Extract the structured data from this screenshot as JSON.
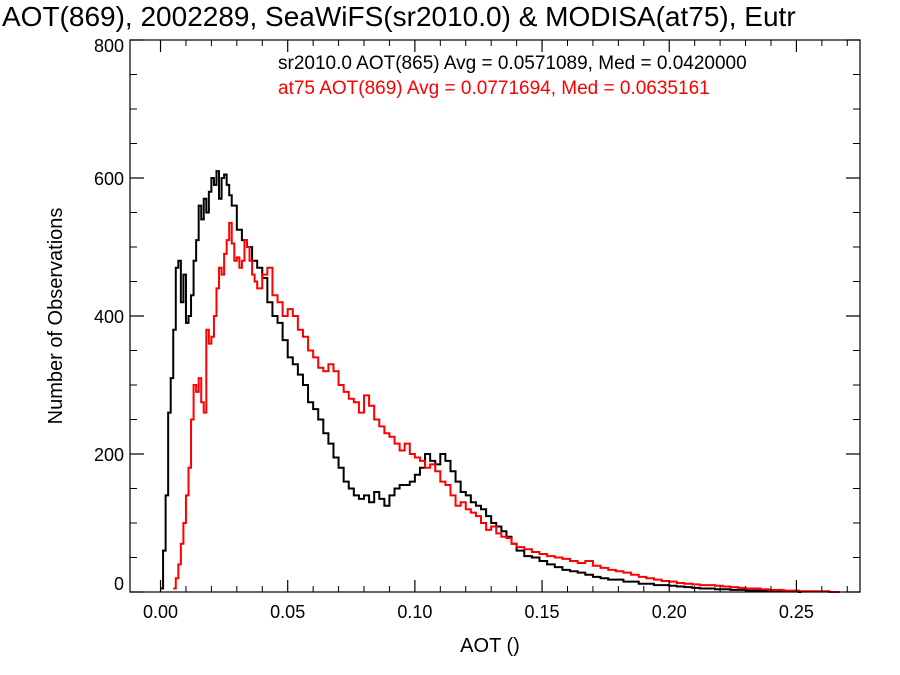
{
  "chart_data": {
    "type": "line",
    "title": "AOT(869), 2002289, SeaWiFS(sr2010.0) & MODISA(at75), Eutr",
    "xlabel": "AOT ()",
    "ylabel": "Number of Observations",
    "xlim": [
      -0.012,
      0.275
    ],
    "ylim": [
      0,
      800
    ],
    "x_ticks": [
      0.0,
      0.05,
      0.1,
      0.15,
      0.2,
      0.25
    ],
    "x_tick_labels": [
      "0.00",
      "0.05",
      "0.10",
      "0.15",
      "0.20",
      "0.25"
    ],
    "y_ticks": [
      0,
      200,
      400,
      600,
      800
    ],
    "y_tick_labels": [
      "0",
      "200",
      "400",
      "600",
      "800"
    ],
    "grid": false,
    "histogram_step": true,
    "bin_width": 0.001,
    "series": [
      {
        "name": "sr2010.0 AOT(865) Avg = 0.0571089, Med = 0.0420000",
        "color": "#000000",
        "x": [
          0.0,
          0.001,
          0.002,
          0.003,
          0.004,
          0.005,
          0.006,
          0.007,
          0.008,
          0.009,
          0.01,
          0.011,
          0.012,
          0.013,
          0.014,
          0.015,
          0.016,
          0.017,
          0.018,
          0.019,
          0.02,
          0.021,
          0.022,
          0.023,
          0.024,
          0.025,
          0.026,
          0.027,
          0.028,
          0.03,
          0.032,
          0.034,
          0.036,
          0.038,
          0.04,
          0.042,
          0.044,
          0.046,
          0.048,
          0.05,
          0.052,
          0.054,
          0.056,
          0.058,
          0.06,
          0.062,
          0.064,
          0.066,
          0.068,
          0.07,
          0.072,
          0.074,
          0.076,
          0.078,
          0.08,
          0.082,
          0.084,
          0.086,
          0.088,
          0.09,
          0.092,
          0.094,
          0.096,
          0.098,
          0.1,
          0.102,
          0.104,
          0.106,
          0.108,
          0.11,
          0.112,
          0.114,
          0.116,
          0.118,
          0.12,
          0.122,
          0.124,
          0.126,
          0.128,
          0.13,
          0.132,
          0.134,
          0.136,
          0.138,
          0.14,
          0.143,
          0.146,
          0.149,
          0.152,
          0.155,
          0.158,
          0.161,
          0.164,
          0.167,
          0.17,
          0.173,
          0.176,
          0.179,
          0.182,
          0.185,
          0.188,
          0.191,
          0.194,
          0.197,
          0.2,
          0.203,
          0.206,
          0.209,
          0.212,
          0.215,
          0.218,
          0.221,
          0.224,
          0.227,
          0.23,
          0.233,
          0.236,
          0.239,
          0.242,
          0.245,
          0.248,
          0.251
        ],
        "values": [
          5,
          60,
          140,
          260,
          310,
          380,
          470,
          480,
          420,
          460,
          390,
          400,
          430,
          480,
          510,
          560,
          540,
          570,
          550,
          580,
          600,
          590,
          610,
          570,
          600,
          605,
          590,
          575,
          560,
          525,
          510,
          500,
          480,
          470,
          455,
          420,
          400,
          390,
          365,
          340,
          330,
          315,
          300,
          275,
          265,
          250,
          230,
          215,
          195,
          180,
          160,
          150,
          140,
          135,
          140,
          130,
          145,
          135,
          125,
          140,
          150,
          155,
          155,
          160,
          170,
          180,
          200,
          190,
          185,
          200,
          190,
          175,
          160,
          145,
          140,
          130,
          125,
          120,
          110,
          100,
          95,
          88,
          80,
          70,
          60,
          52,
          50,
          45,
          40,
          36,
          32,
          30,
          28,
          25,
          22,
          20,
          18,
          18,
          15,
          15,
          12,
          12,
          10,
          10,
          9,
          8,
          7,
          6,
          5,
          5,
          4,
          4,
          3,
          3,
          2,
          2,
          2,
          1,
          1,
          1,
          1,
          0
        ]
      },
      {
        "name": "at75 AOT(869) Avg = 0.0771694, Med = 0.0635161",
        "color": "#ff0000",
        "x": [
          0.005,
          0.006,
          0.007,
          0.008,
          0.009,
          0.01,
          0.011,
          0.012,
          0.013,
          0.014,
          0.015,
          0.016,
          0.017,
          0.018,
          0.019,
          0.02,
          0.021,
          0.022,
          0.023,
          0.024,
          0.025,
          0.026,
          0.027,
          0.028,
          0.029,
          0.03,
          0.031,
          0.032,
          0.033,
          0.034,
          0.035,
          0.036,
          0.037,
          0.038,
          0.04,
          0.042,
          0.044,
          0.046,
          0.048,
          0.05,
          0.052,
          0.054,
          0.056,
          0.058,
          0.06,
          0.062,
          0.064,
          0.066,
          0.068,
          0.07,
          0.072,
          0.074,
          0.076,
          0.078,
          0.08,
          0.082,
          0.084,
          0.086,
          0.088,
          0.09,
          0.092,
          0.094,
          0.096,
          0.098,
          0.1,
          0.102,
          0.104,
          0.106,
          0.108,
          0.11,
          0.112,
          0.114,
          0.116,
          0.118,
          0.12,
          0.122,
          0.124,
          0.126,
          0.128,
          0.13,
          0.132,
          0.134,
          0.136,
          0.138,
          0.14,
          0.143,
          0.146,
          0.149,
          0.152,
          0.155,
          0.158,
          0.161,
          0.164,
          0.167,
          0.17,
          0.173,
          0.176,
          0.179,
          0.182,
          0.185,
          0.188,
          0.191,
          0.194,
          0.197,
          0.2,
          0.203,
          0.206,
          0.209,
          0.212,
          0.215,
          0.218,
          0.221,
          0.224,
          0.227,
          0.23,
          0.233,
          0.236,
          0.239,
          0.242,
          0.245,
          0.248,
          0.251,
          0.254,
          0.257,
          0.26,
          0.263,
          0.266
        ],
        "values": [
          5,
          20,
          40,
          70,
          100,
          140,
          180,
          250,
          300,
          290,
          310,
          275,
          260,
          380,
          360,
          370,
          400,
          440,
          470,
          460,
          490,
          510,
          535,
          505,
          480,
          485,
          470,
          480,
          510,
          500,
          480,
          460,
          450,
          440,
          460,
          470,
          430,
          420,
          400,
          410,
          400,
          380,
          370,
          350,
          340,
          325,
          320,
          330,
          320,
          300,
          290,
          280,
          275,
          260,
          285,
          270,
          250,
          240,
          230,
          225,
          215,
          205,
          215,
          200,
          195,
          190,
          180,
          185,
          175,
          160,
          155,
          140,
          125,
          130,
          120,
          115,
          110,
          100,
          90,
          95,
          85,
          80,
          78,
          70,
          65,
          62,
          58,
          55,
          52,
          50,
          48,
          45,
          42,
          45,
          38,
          35,
          32,
          30,
          28,
          25,
          22,
          20,
          18,
          16,
          15,
          13,
          12,
          11,
          10,
          10,
          9,
          8,
          7,
          6,
          5,
          5,
          4,
          3,
          3,
          2,
          2,
          1,
          1,
          1,
          1,
          0,
          0
        ]
      }
    ]
  }
}
